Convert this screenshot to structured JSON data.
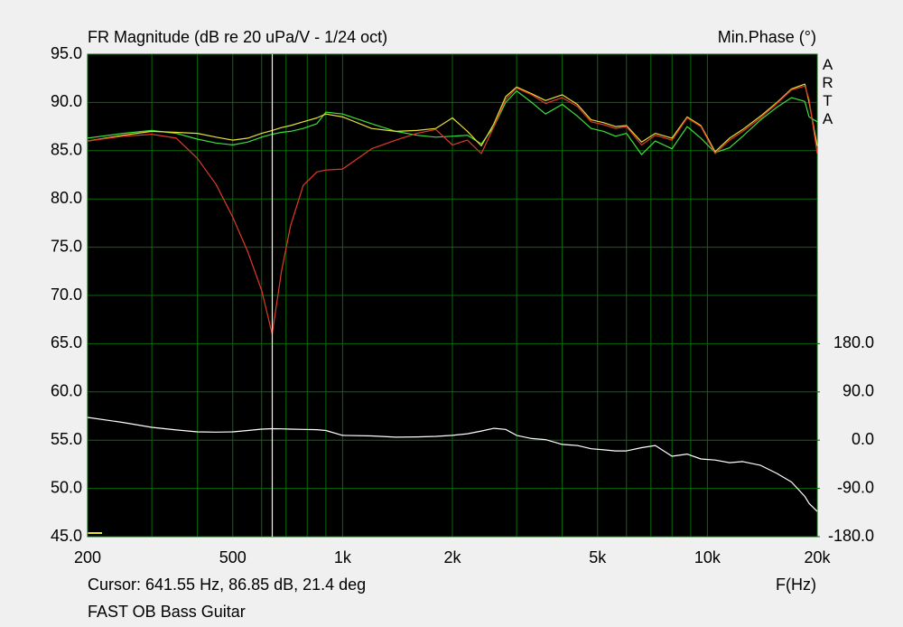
{
  "chart_data": {
    "type": "line",
    "title": "FR Magnitude (dB re 20 uPa/V - 1/24 oct)",
    "y2_title": "Min.Phase (°)",
    "logo": "ARTA",
    "xlabel": "F(Hz)",
    "cursor_text": "Cursor: 641.55 Hz, 86.85 dB, 21.4 deg",
    "footer": "FAST OB Bass Guitar",
    "cursor_x": 641.55,
    "xscale": "log",
    "grid": true,
    "xlim": [
      200,
      20000
    ],
    "xticks": [
      200,
      500,
      {
        "value": 1000,
        "label": "1k"
      },
      {
        "value": 2000,
        "label": "2k"
      },
      {
        "value": 5000,
        "label": "5k"
      },
      {
        "value": 10000,
        "label": "10k"
      },
      {
        "value": 20000,
        "label": "20k"
      }
    ],
    "x_minor_grid": [
      300,
      400,
      600,
      700,
      800,
      900,
      3000,
      4000,
      6000,
      7000,
      8000,
      9000
    ],
    "ylim": [
      45,
      95
    ],
    "yticks": [
      {
        "value": 95,
        "label": "95.0"
      },
      {
        "value": 90,
        "label": "90.0"
      },
      {
        "value": 85,
        "label": "85.0"
      },
      {
        "value": 80,
        "label": "80.0"
      },
      {
        "value": 75,
        "label": "75.0"
      },
      {
        "value": 70,
        "label": "70.0"
      },
      {
        "value": 65,
        "label": "65.0"
      },
      {
        "value": 60,
        "label": "60.0"
      },
      {
        "value": 55,
        "label": "55.0"
      },
      {
        "value": 50,
        "label": "50.0"
      },
      {
        "value": 45,
        "label": "45.0"
      }
    ],
    "y2lim": [
      -180,
      720
    ],
    "y2ticks": [
      {
        "value": 180,
        "label": "180.0"
      },
      {
        "value": 90,
        "label": "90.0"
      },
      {
        "value": 0,
        "label": "0.0"
      },
      {
        "value": -90,
        "label": "-90.0"
      },
      {
        "value": -180,
        "label": "-180.0"
      }
    ],
    "x": [
      200,
      250,
      300,
      350,
      400,
      450,
      500,
      550,
      600,
      641,
      680,
      720,
      780,
      850,
      900,
      1000,
      1200,
      1400,
      1600,
      1800,
      2000,
      2200,
      2400,
      2600,
      2800,
      3000,
      3300,
      3600,
      4000,
      4400,
      4800,
      5200,
      5600,
      6000,
      6600,
      7200,
      8000,
      8800,
      9600,
      10500,
      11500,
      12500,
      14000,
      15500,
      17000,
      18500,
      19000,
      20000
    ],
    "series": [
      {
        "color": "#e03a2a",
        "values": [
          86.0,
          86.5,
          86.7,
          86.3,
          84.2,
          81.5,
          78.1,
          74.5,
          70.5,
          66.0,
          72.5,
          77.2,
          81.4,
          82.8,
          83.0,
          83.1,
          85.2,
          86.1,
          86.8,
          87.2,
          85.6,
          86.1,
          84.7,
          87.5,
          90.3,
          91.5,
          90.8,
          89.9,
          90.5,
          89.6,
          88.0,
          87.7,
          87.3,
          87.5,
          85.6,
          86.6,
          86.1,
          88.4,
          87.5,
          84.7,
          86.1,
          87.0,
          88.4,
          89.9,
          91.3,
          91.7,
          90.3,
          84.7
        ]
      },
      {
        "color": "#e6e03a",
        "values": [
          86.0,
          86.6,
          87.0,
          86.9,
          86.8,
          86.4,
          86.1,
          86.3,
          86.8,
          87.1,
          87.4,
          87.6,
          88.0,
          88.4,
          88.8,
          88.5,
          87.3,
          87.0,
          87.1,
          87.3,
          88.4,
          87.0,
          85.5,
          87.8,
          90.6,
          91.6,
          90.9,
          90.2,
          90.8,
          89.8,
          88.2,
          87.9,
          87.5,
          87.6,
          85.9,
          86.8,
          86.3,
          88.5,
          87.6,
          84.9,
          86.3,
          87.2,
          88.6,
          90.0,
          91.4,
          91.9,
          90.0,
          85.5
        ]
      },
      {
        "color": "#3ae03a",
        "values": [
          86.3,
          86.8,
          87.1,
          86.8,
          86.2,
          85.8,
          85.6,
          85.9,
          86.4,
          86.7,
          86.9,
          87.0,
          87.3,
          87.8,
          89.0,
          88.8,
          87.8,
          87.0,
          86.6,
          86.4,
          86.5,
          86.6,
          85.7,
          87.5,
          90.0,
          91.2,
          90.0,
          88.8,
          89.8,
          88.6,
          87.3,
          87.0,
          86.5,
          86.8,
          84.6,
          86.0,
          85.2,
          87.5,
          86.3,
          84.8,
          85.3,
          86.5,
          88.2,
          89.5,
          90.5,
          90.1,
          88.5,
          88.0
        ]
      },
      {
        "color": "#ffffff",
        "axis": "y2",
        "values": [
          42.5,
          33.0,
          24.0,
          19.0,
          15.5,
          15.0,
          15.5,
          18.0,
          20.6,
          21.4,
          21.0,
          20.5,
          20.0,
          19.5,
          18.0,
          9.0,
          8.0,
          5.5,
          6.0,
          7.0,
          9.0,
          12.0,
          17.0,
          22.0,
          20.0,
          9.0,
          3.0,
          1.0,
          -8.0,
          -10.0,
          -16.0,
          -18.0,
          -20.0,
          -20.0,
          -14.0,
          -10.0,
          -30.0,
          -26.0,
          -35.0,
          -37.0,
          -42.0,
          -40.0,
          -47.0,
          -62.0,
          -78.0,
          -105.0,
          -118.0,
          -133.0
        ]
      }
    ]
  }
}
